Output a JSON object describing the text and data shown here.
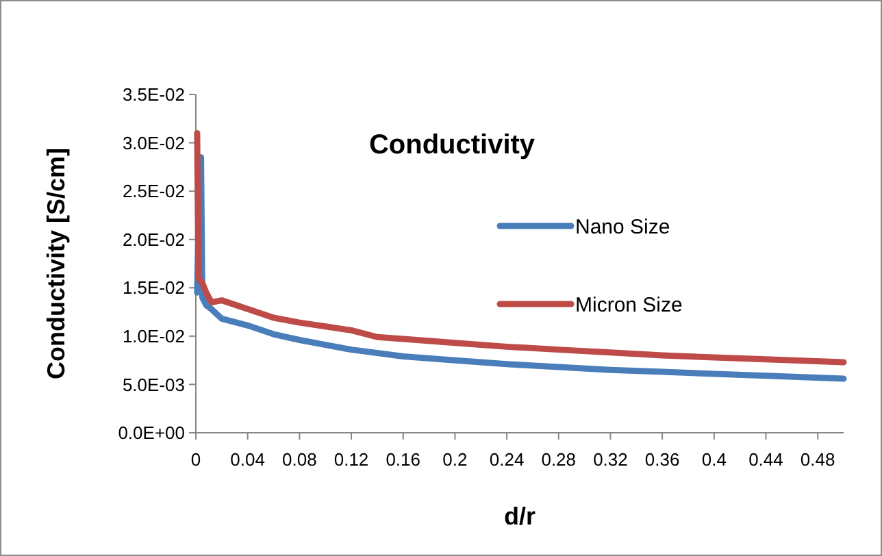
{
  "chart_data": {
    "type": "line",
    "title": "Conductivity",
    "xlabel": "d/r",
    "ylabel": "Conductivity [S/cm]",
    "xlim": [
      0,
      0.5
    ],
    "xticks": [
      0,
      0.04,
      0.08,
      0.12,
      0.16,
      0.2,
      0.24,
      0.28,
      0.32,
      0.36,
      0.4,
      0.44,
      0.48
    ],
    "ylim": [
      0,
      0.035
    ],
    "yticks": [
      {
        "value": 0,
        "label": "0.0E+00"
      },
      {
        "value": 0.005,
        "label": "5.0E-03"
      },
      {
        "value": 0.01,
        "label": "1.0E-02"
      },
      {
        "value": 0.015,
        "label": "1.5E-02"
      },
      {
        "value": 0.02,
        "label": "2.0E-02"
      },
      {
        "value": 0.025,
        "label": "2.5E-02"
      },
      {
        "value": 0.03,
        "label": "3.0E-02"
      },
      {
        "value": 0.035,
        "label": "3.5E-02"
      }
    ],
    "grid": false,
    "legend": "right",
    "marker": "none",
    "line_style": "solid",
    "series": [
      {
        "name": "Nano Size",
        "color": "#4a7ebb",
        "x": [
          0.001,
          0.003,
          0.004,
          0.005,
          0.008,
          0.012,
          0.02,
          0.04,
          0.06,
          0.08,
          0.1,
          0.12,
          0.16,
          0.2,
          0.24,
          0.28,
          0.32,
          0.36,
          0.4,
          0.44,
          0.5
        ],
        "values": [
          0.0145,
          0.0285,
          0.0285,
          0.014,
          0.0132,
          0.0128,
          0.0118,
          0.0111,
          0.0102,
          0.0096,
          0.0091,
          0.0086,
          0.0079,
          0.0075,
          0.0071,
          0.0068,
          0.0065,
          0.0063,
          0.0061,
          0.0059,
          0.0056
        ]
      },
      {
        "name": "Micron Size",
        "color": "#be4b48",
        "x": [
          0.001,
          0.002,
          0.005,
          0.008,
          0.012,
          0.02,
          0.04,
          0.06,
          0.08,
          0.1,
          0.12,
          0.14,
          0.16,
          0.2,
          0.24,
          0.28,
          0.32,
          0.36,
          0.4,
          0.44,
          0.5
        ],
        "values": [
          0.031,
          0.016,
          0.0155,
          0.0145,
          0.0135,
          0.0137,
          0.0128,
          0.0119,
          0.0114,
          0.011,
          0.0106,
          0.0099,
          0.0097,
          0.0093,
          0.0089,
          0.0086,
          0.0083,
          0.008,
          0.0078,
          0.0076,
          0.0073
        ]
      }
    ]
  }
}
